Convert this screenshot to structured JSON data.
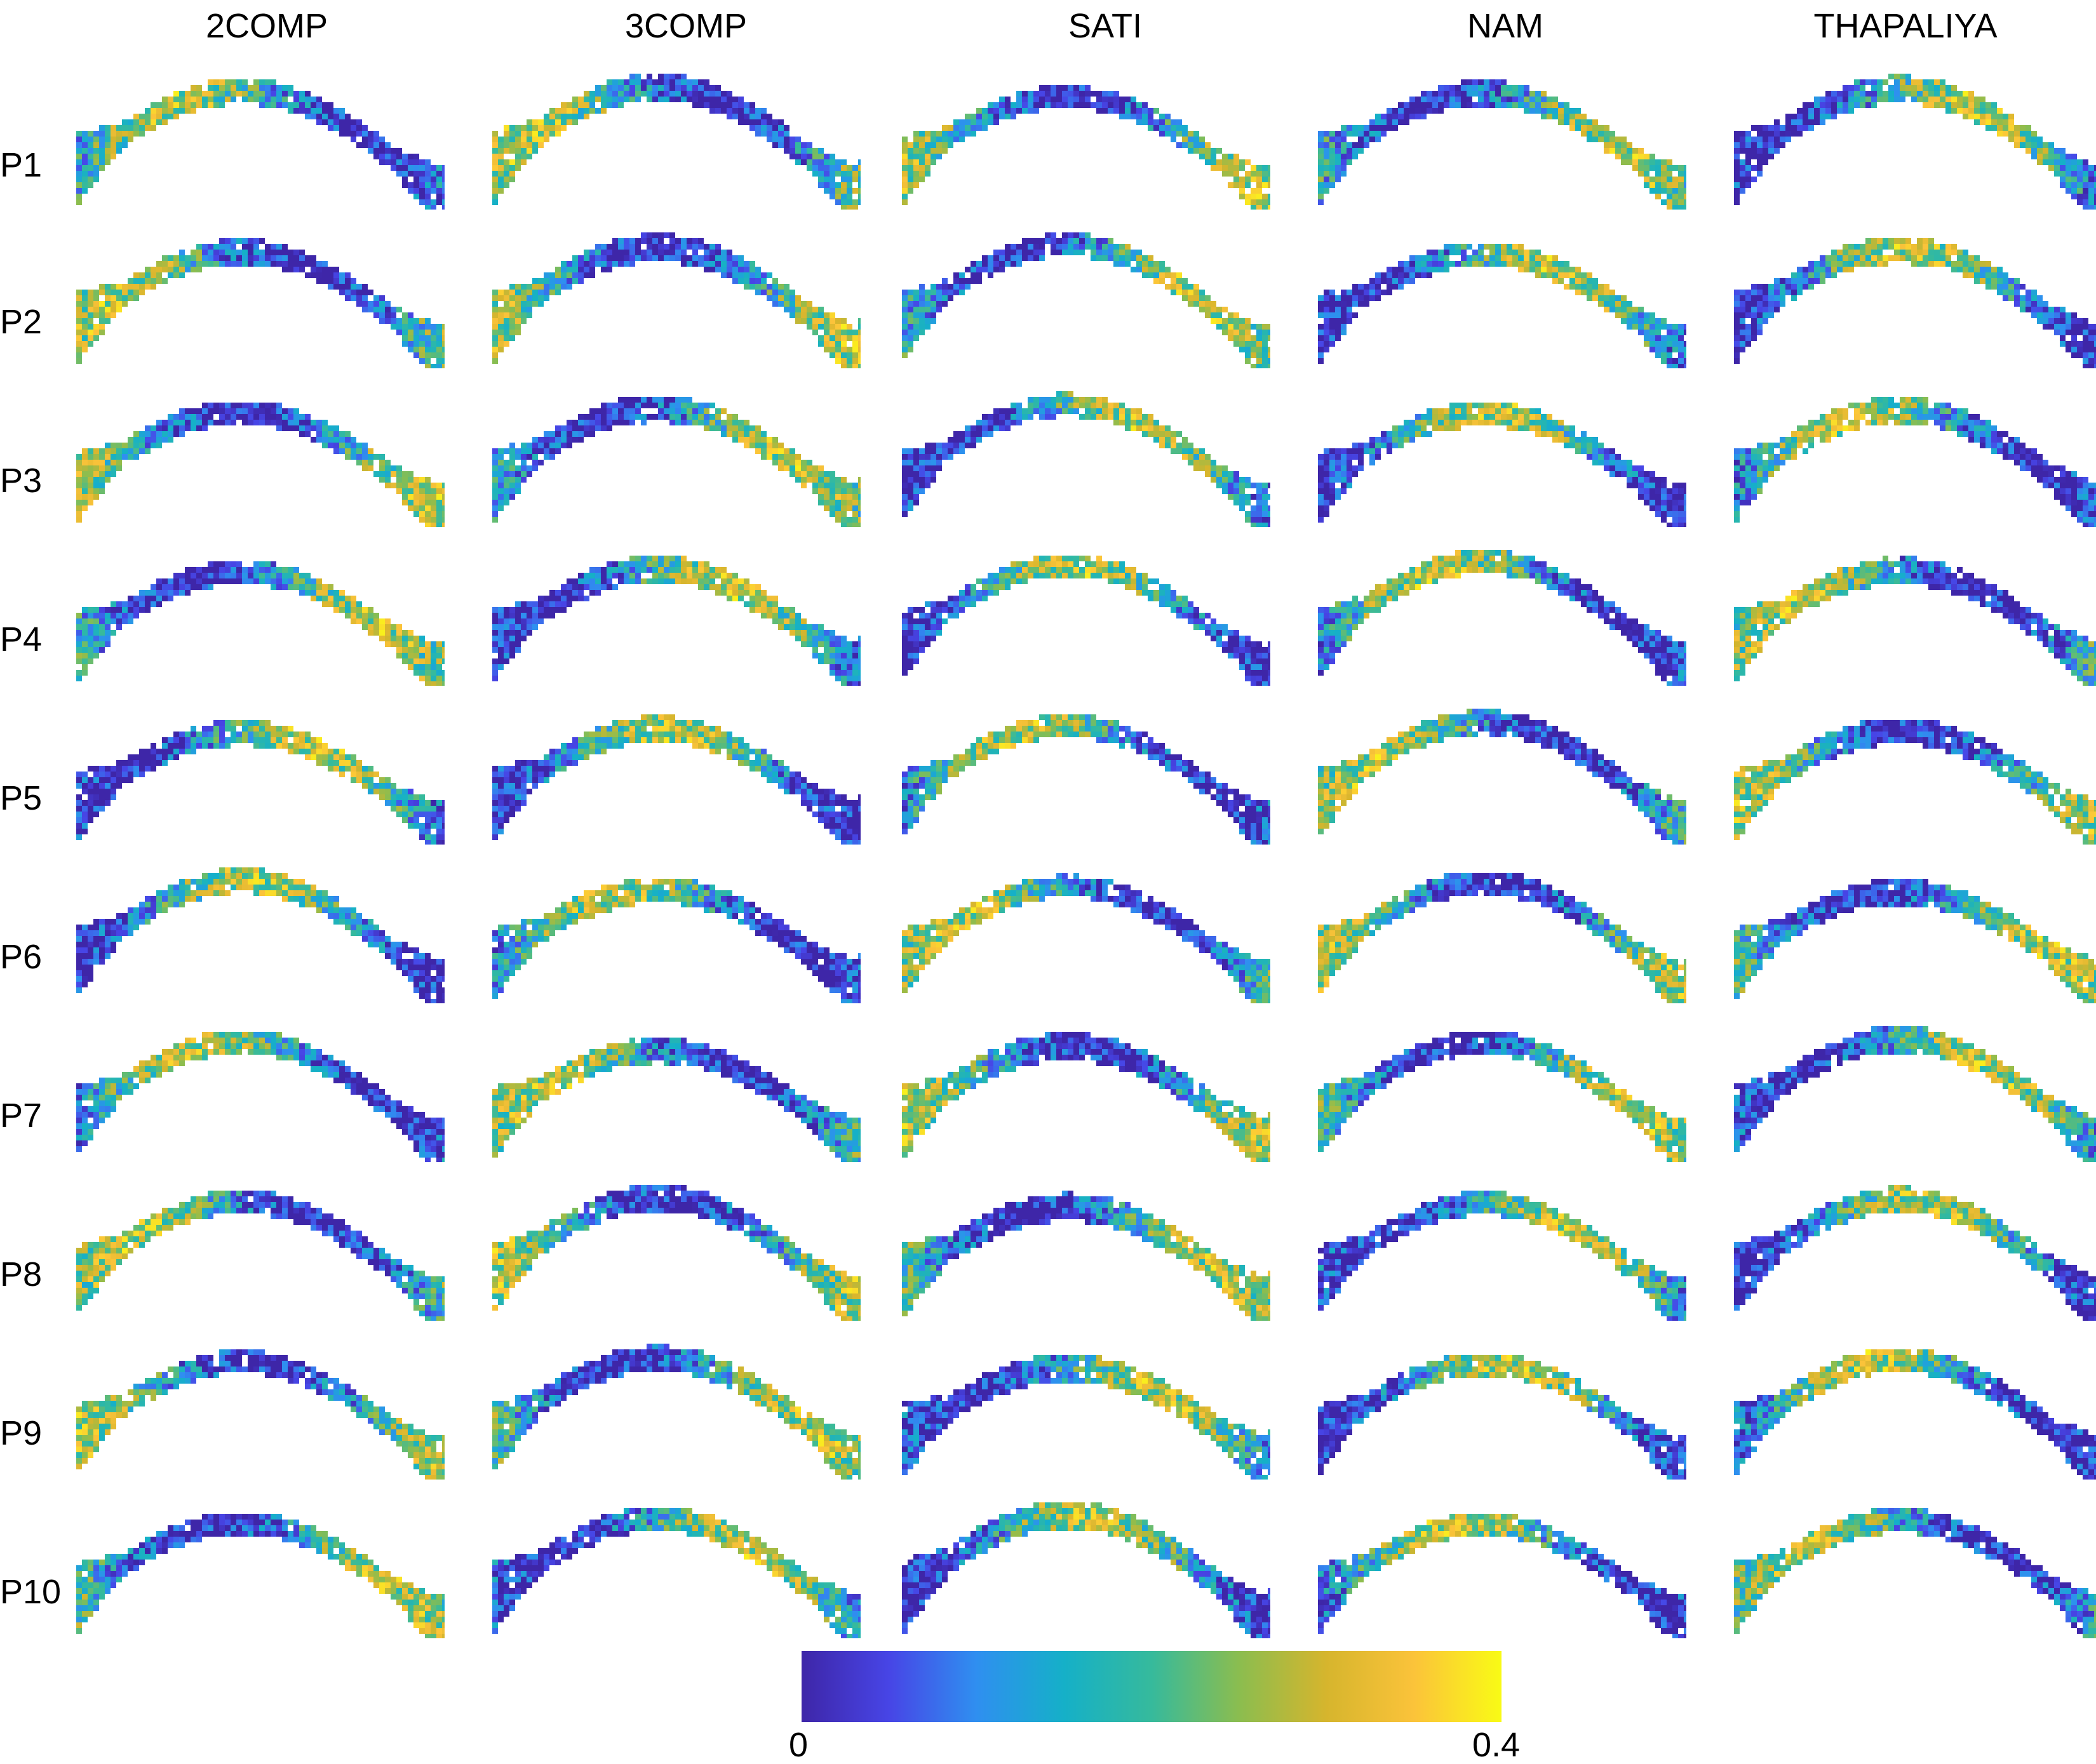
{
  "columns": [
    {
      "label": "2COMP"
    },
    {
      "label": "3COMP"
    },
    {
      "label": "SATI"
    },
    {
      "label": "NAM"
    },
    {
      "label": "THAPALIYA"
    }
  ],
  "rows": [
    {
      "label": "P1"
    },
    {
      "label": "P2"
    },
    {
      "label": "P3"
    },
    {
      "label": "P4"
    },
    {
      "label": "P5"
    },
    {
      "label": "P6"
    },
    {
      "label": "P7"
    },
    {
      "label": "P8"
    },
    {
      "label": "P9"
    },
    {
      "label": "P10"
    }
  ],
  "colorbar": {
    "min_label": "0",
    "max_label": "0.4",
    "colormap": "parula",
    "stops": [
      "#3e26a8",
      "#4745e6",
      "#2f8ff0",
      "#15b0c8",
      "#36ba9c",
      "#8bbd4f",
      "#d6b52d",
      "#fbc33a",
      "#f9fb15"
    ]
  }
}
